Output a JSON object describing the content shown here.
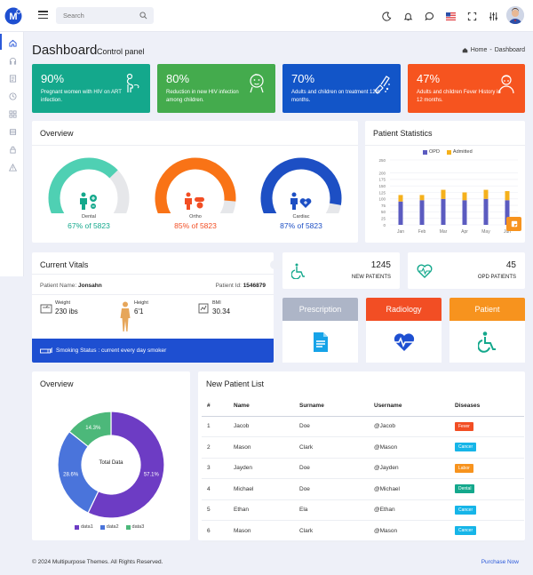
{
  "colors": {
    "primary": "#1e4fd1",
    "teal": "#14a88c",
    "green": "#44ab4d",
    "blue": "#1255c8",
    "orange": "#f6541f",
    "gauge_teal": "#4fd0b3",
    "gauge_orange": "#f97316",
    "gauge_blue": "#1d4fc4",
    "bar_blue": "#5b5bc0",
    "bar_yellow": "#f5b11c",
    "prescription": "#adb5c7",
    "radiology": "#f24e24",
    "patient": "#f7931e",
    "pie_purple": "#6d3cc4",
    "pie_blue": "#4a74db",
    "pie_green": "#4cb87a"
  },
  "topbar": {
    "search_placeholder": "Search"
  },
  "header": {
    "title": "Dashboard",
    "subtitle": "Control panel",
    "breadcrumb_home": "Home",
    "breadcrumb_sep": "-",
    "breadcrumb_current": "Dashboard"
  },
  "stats": [
    {
      "pct": "90%",
      "desc": "Pregnant women with HIV on ART infection.",
      "icon": "pregnant-icon"
    },
    {
      "pct": "80%",
      "desc": "Reduction in new HIV infection among children.",
      "icon": "baby-icon"
    },
    {
      "pct": "70%",
      "desc": "Adults and children on treatment 12th months.",
      "icon": "treatment-icon"
    },
    {
      "pct": "47%",
      "desc": "Adults and children Fever History in 12 months.",
      "icon": "fever-icon"
    }
  ],
  "overview": {
    "title": "Overview",
    "gauges": [
      {
        "label": "Dental",
        "value": "67% of 5823",
        "percent": 67
      },
      {
        "label": "Ortho",
        "value": "85% of 5823",
        "percent": 85
      },
      {
        "label": "Cardiac",
        "value": "87% of 5823",
        "percent": 87
      }
    ]
  },
  "patient_stats": {
    "title": "Patient Statistics",
    "legend": [
      "OPD",
      "Admitted"
    ],
    "chart_data": {
      "type": "bar",
      "categories": [
        "Jan",
        "Feb",
        "Mar",
        "Apr",
        "May",
        "Jun"
      ],
      "series": [
        {
          "name": "OPD",
          "values": [
            90,
            95,
            100,
            95,
            100,
            95
          ]
        },
        {
          "name": "Admitted",
          "values": [
            25,
            20,
            35,
            30,
            35,
            35
          ]
        }
      ],
      "stacked": true,
      "ylim": [
        0,
        250
      ],
      "yticks": [
        "0",
        "25",
        "50",
        "75",
        "100",
        "125",
        "150",
        "175",
        "200",
        "250"
      ]
    }
  },
  "vitals": {
    "title": "Current Vitals",
    "name_label": "Patient Name:",
    "name_value": "Jonsahn",
    "id_label": "Patient Id:",
    "id_value": "1546879",
    "weight_label": "Weight",
    "weight_value": "230 ibs",
    "height_label": "Height",
    "height_value": "6'1",
    "bmi_label": "BMI",
    "bmi_value": "30.34",
    "smoking": "Smoking Status : current every day smoker"
  },
  "counters": [
    {
      "num": "1245",
      "label": "NEW PATIENTS",
      "icon": "wheelchair-icon"
    },
    {
      "num": "45",
      "label": "OPD PATIENTS",
      "icon": "heartbeat-icon"
    }
  ],
  "actions": [
    {
      "label": "Prescription",
      "icon": "document-icon"
    },
    {
      "label": "Radiology",
      "icon": "pulse-heart-icon"
    },
    {
      "label": "Patient",
      "icon": "wheelchair-icon"
    }
  ],
  "overview2": {
    "title": "Overview",
    "center": "Total Data",
    "chart_data": {
      "type": "pie",
      "donut": true,
      "series": [
        {
          "name": "data1",
          "value": 57.1
        },
        {
          "name": "data2",
          "value": 28.6
        },
        {
          "name": "data3",
          "value": 14.3
        }
      ],
      "labels": [
        "57.1%",
        "28.6%",
        "14.3%"
      ]
    }
  },
  "patients": {
    "title": "New Patient List",
    "headers": [
      "#",
      "Name",
      "Surname",
      "Username",
      "Diseases"
    ],
    "rows": [
      {
        "n": "1",
        "name": "Jacob",
        "surname": "Doe",
        "username": "@Jacob",
        "disease": "Fever",
        "color": "#f24e24"
      },
      {
        "n": "2",
        "name": "Mason",
        "surname": "Clark",
        "username": "@Mason",
        "disease": "Cancer",
        "color": "#16b5e8"
      },
      {
        "n": "3",
        "name": "Jayden",
        "surname": "Doe",
        "username": "@Jayden",
        "disease": "Labor",
        "color": "#f7931e"
      },
      {
        "n": "4",
        "name": "Michael",
        "surname": "Doe",
        "username": "@Michael",
        "disease": "Dental",
        "color": "#14a88c"
      },
      {
        "n": "5",
        "name": "Ethan",
        "surname": "Ela",
        "username": "@Ethan",
        "disease": "Cancer",
        "color": "#16b5e8"
      },
      {
        "n": "6",
        "name": "Mason",
        "surname": "Clark",
        "username": "@Mason",
        "disease": "Cancer",
        "color": "#16b5e8"
      }
    ]
  },
  "footer": {
    "copyright": "© 2024 Multipurpose Themes. All Rights Reserved.",
    "purchase": "Purchase Now"
  }
}
